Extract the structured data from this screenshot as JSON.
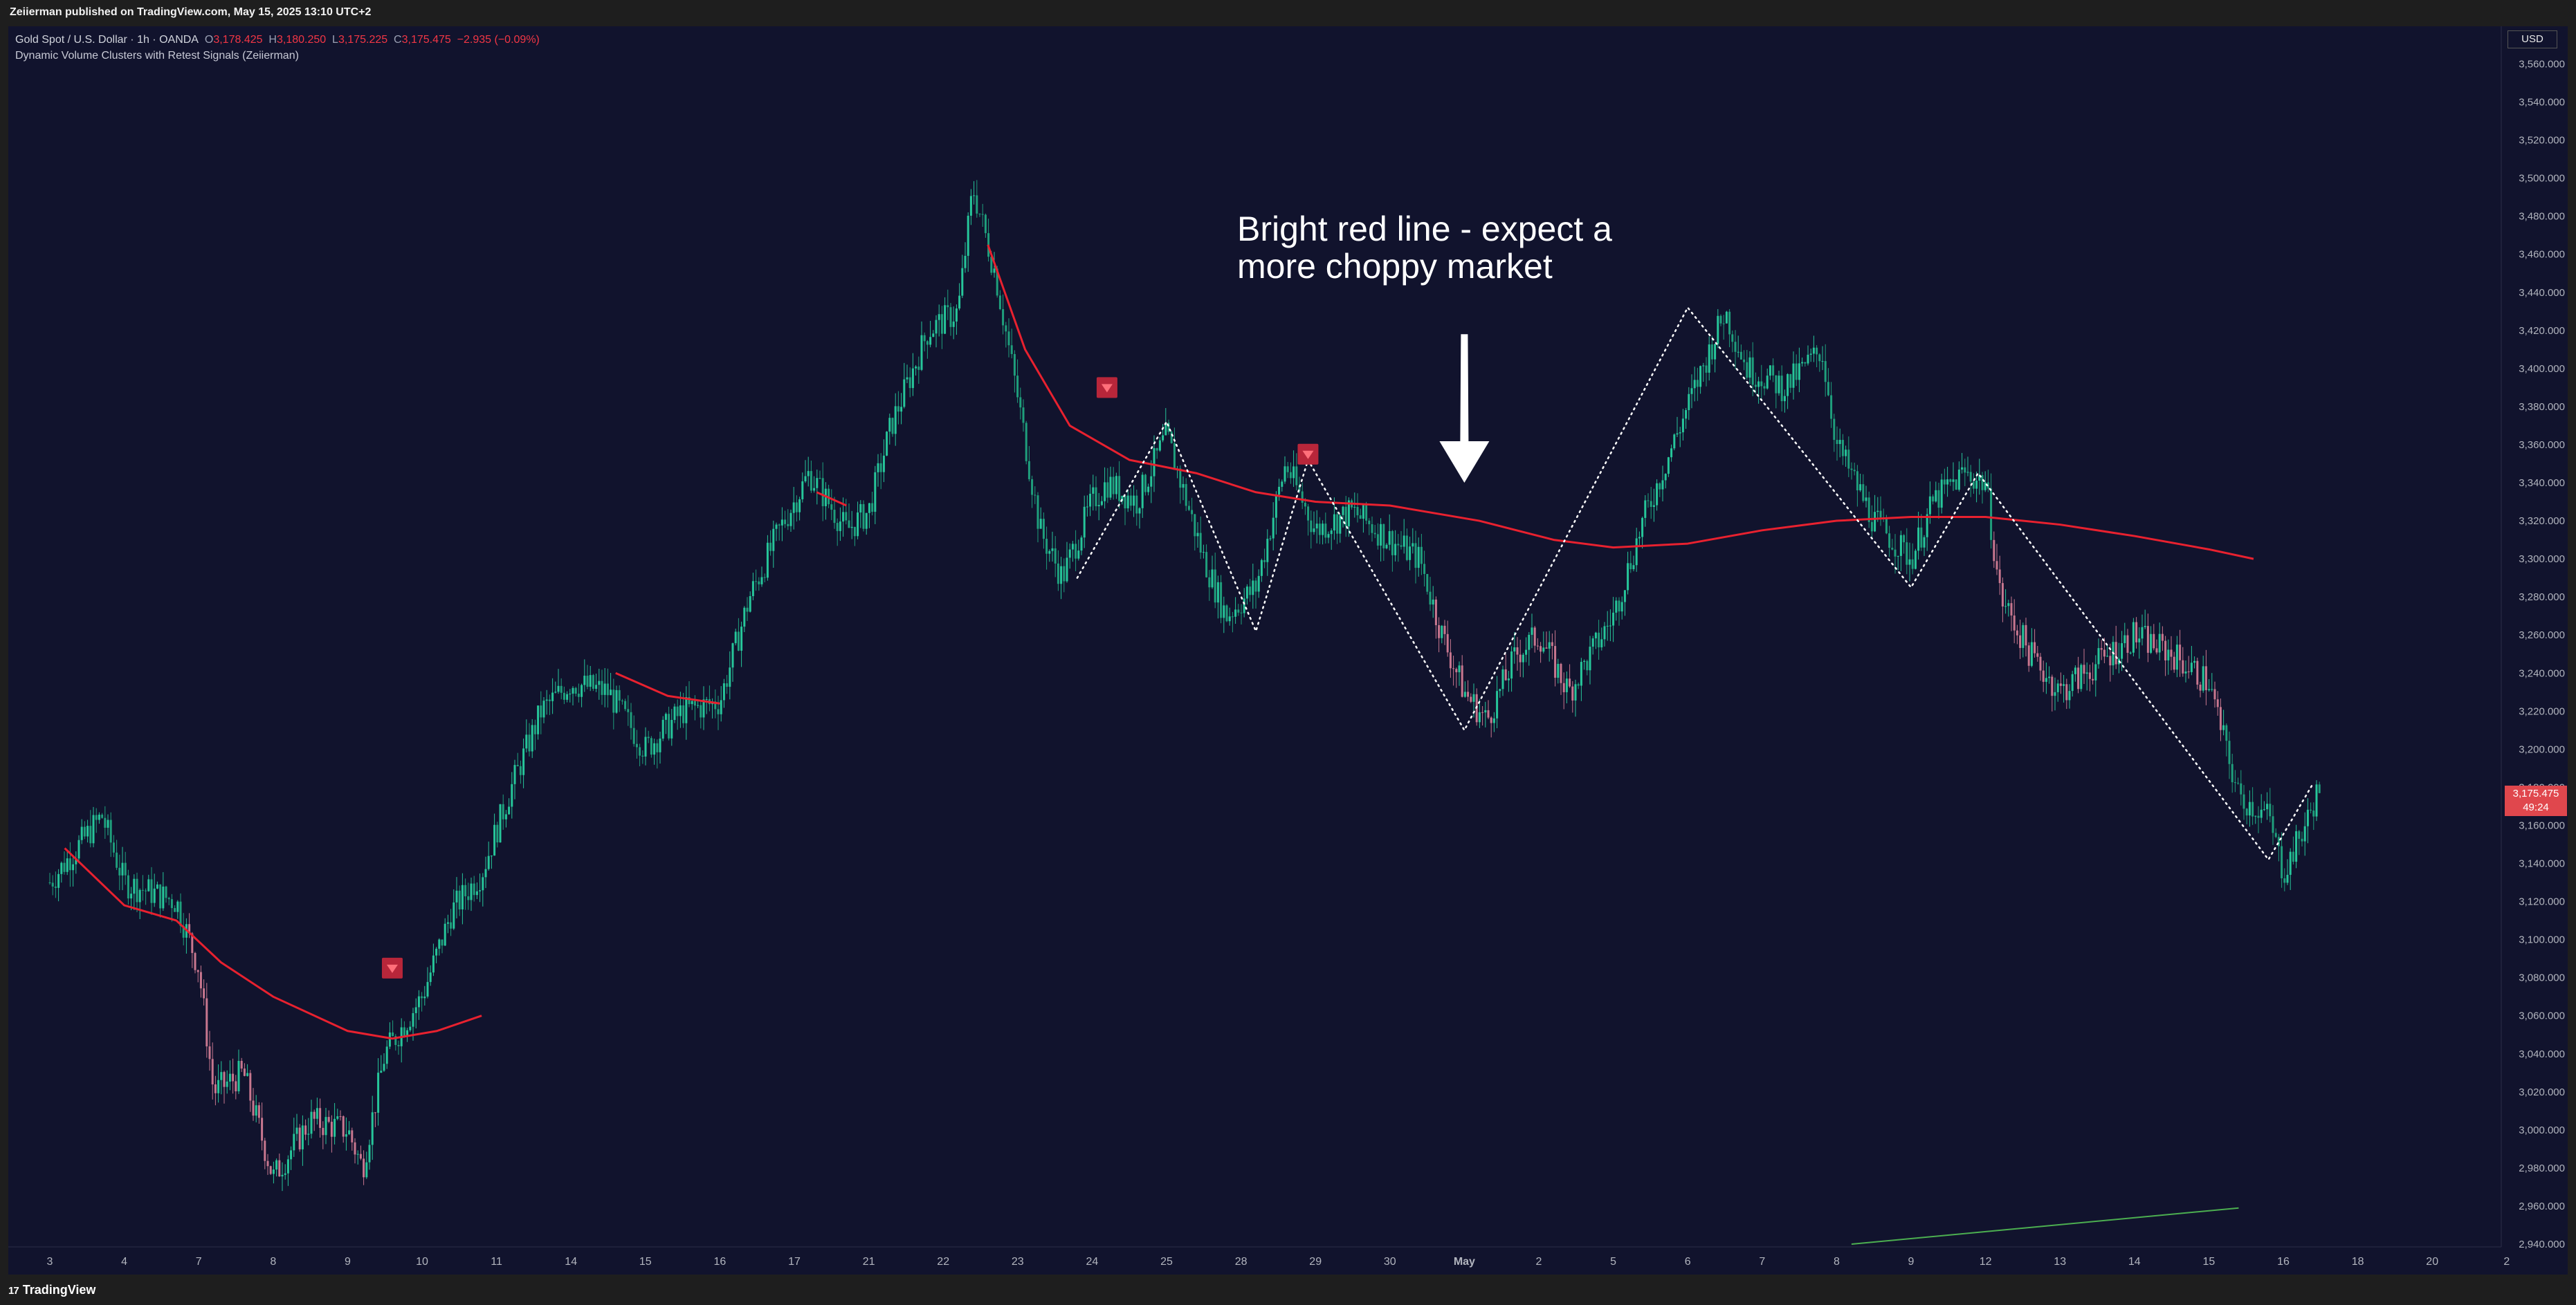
{
  "header": {
    "published_text": "Zeiierman published on TradingView.com, May 15, 2025 13:10 UTC+2"
  },
  "legend": {
    "symbol": "Gold Spot / U.S. Dollar · 1h · OANDA",
    "open_label": "O",
    "open": "3,178.425",
    "high_label": "H",
    "high": "3,180.250",
    "low_label": "L",
    "low": "3,175.225",
    "close_label": "C",
    "close": "3,175.475",
    "change": "−2.935 (−0.09%)",
    "indicator": "Dynamic Volume Clusters with Retest Signals (Zeiierman)"
  },
  "price_scale": {
    "currency": "USD",
    "last_price": "3,175.475",
    "countdown": "49:24"
  },
  "footer": {
    "brand": "TradingView",
    "logo_glyph": "17"
  },
  "colors": {
    "background": "#11132d",
    "bull_candle": "#26c69a",
    "bear_candle": "#c8778f",
    "cluster_line": "#e8212f",
    "zigzag": "#ffffff",
    "signal_marker": "#b8263a",
    "trend_line": "#4caf50",
    "last_price_tag": "#e0474d"
  },
  "chart_data": {
    "type": "candlestick",
    "instrument": "Gold Spot / U.S. Dollar",
    "timeframe": "1h",
    "ylim": [
      2940,
      3565
    ],
    "y_ticks": [
      2940,
      2960,
      2980,
      3000,
      3020,
      3040,
      3060,
      3080,
      3100,
      3120,
      3140,
      3160,
      3180,
      3200,
      3220,
      3240,
      3260,
      3280,
      3300,
      3320,
      3340,
      3360,
      3380,
      3400,
      3420,
      3440,
      3460,
      3480,
      3500,
      3520,
      3540,
      3560
    ],
    "y_tick_labels": [
      "2,940.000",
      "2,960.000",
      "2,980.000",
      "3,000.000",
      "3,020.000",
      "3,040.000",
      "3,060.000",
      "3,080.000",
      "3,100.000",
      "3,120.000",
      "3,140.000",
      "3,160.000",
      "3,180.000",
      "3,200.000",
      "3,220.000",
      "3,240.000",
      "3,260.000",
      "3,280.000",
      "3,300.000",
      "3,320.000",
      "3,340.000",
      "3,360.000",
      "3,380.000",
      "3,400.000",
      "3,420.000",
      "3,440.000",
      "3,460.000",
      "3,480.000",
      "3,500.000",
      "3,520.000",
      "3,540.000",
      "3,560.000"
    ],
    "x_tick_labels": [
      "3",
      "4",
      "7",
      "8",
      "9",
      "10",
      "11",
      "14",
      "15",
      "16",
      "17",
      "21",
      "22",
      "23",
      "24",
      "25",
      "28",
      "29",
      "30",
      "May",
      "2",
      "5",
      "6",
      "7",
      "8",
      "9",
      "12",
      "13",
      "14",
      "15",
      "16",
      "18",
      "20",
      "2"
    ],
    "x_ticks_index": [
      0,
      1,
      2,
      3,
      4,
      5,
      6,
      7,
      8,
      9,
      10,
      11,
      12,
      13,
      14,
      15,
      16,
      17,
      18,
      19,
      20,
      21,
      22,
      23,
      24,
      25,
      26,
      27,
      28,
      29,
      30,
      31,
      32,
      33
    ],
    "x_tick_bold": [
      "May"
    ],
    "price_path": [
      [
        0.0,
        3130
      ],
      [
        0.7,
        3165
      ],
      [
        1.0,
        3130
      ],
      [
        1.7,
        3120
      ],
      [
        2.0,
        3085
      ],
      [
        2.2,
        3020
      ],
      [
        2.6,
        3030
      ],
      [
        3.0,
        2975
      ],
      [
        3.5,
        3005
      ],
      [
        4.0,
        3000
      ],
      [
        4.2,
        2980
      ],
      [
        4.5,
        3040
      ],
      [
        5.0,
        3070
      ],
      [
        5.4,
        3115
      ],
      [
        5.8,
        3135
      ],
      [
        6.2,
        3180
      ],
      [
        6.6,
        3220
      ],
      [
        7.0,
        3235
      ],
      [
        7.5,
        3230
      ],
      [
        8.0,
        3200
      ],
      [
        8.5,
        3220
      ],
      [
        9.0,
        3225
      ],
      [
        9.4,
        3280
      ],
      [
        9.8,
        3315
      ],
      [
        10.2,
        3345
      ],
      [
        10.7,
        3315
      ],
      [
        11.0,
        3325
      ],
      [
        11.3,
        3370
      ],
      [
        11.8,
        3420
      ],
      [
        12.2,
        3430
      ],
      [
        12.4,
        3495
      ],
      [
        12.7,
        3450
      ],
      [
        13.0,
        3385
      ],
      [
        13.3,
        3315
      ],
      [
        13.6,
        3290
      ],
      [
        14.0,
        3330
      ],
      [
        14.2,
        3340
      ],
      [
        14.6,
        3330
      ],
      [
        15.0,
        3365
      ],
      [
        15.5,
        3300
      ],
      [
        15.8,
        3270
      ],
      [
        16.2,
        3285
      ],
      [
        16.6,
        3350
      ],
      [
        17.0,
        3315
      ],
      [
        17.5,
        3325
      ],
      [
        18.0,
        3310
      ],
      [
        18.4,
        3300
      ],
      [
        18.7,
        3260
      ],
      [
        19.0,
        3230
      ],
      [
        19.3,
        3215
      ],
      [
        19.7,
        3250
      ],
      [
        20.0,
        3260
      ],
      [
        20.4,
        3230
      ],
      [
        21.0,
        3270
      ],
      [
        21.4,
        3320
      ],
      [
        21.8,
        3360
      ],
      [
        22.0,
        3380
      ],
      [
        22.5,
        3430
      ],
      [
        22.8,
        3400
      ],
      [
        23.3,
        3390
      ],
      [
        23.8,
        3410
      ],
      [
        24.0,
        3360
      ],
      [
        24.5,
        3320
      ],
      [
        25.0,
        3300
      ],
      [
        25.3,
        3330
      ],
      [
        25.7,
        3345
      ],
      [
        26.0,
        3340
      ],
      [
        26.2,
        3280
      ],
      [
        26.6,
        3250
      ],
      [
        27.0,
        3230
      ],
      [
        27.5,
        3245
      ],
      [
        28.0,
        3260
      ],
      [
        28.5,
        3250
      ],
      [
        29.0,
        3235
      ],
      [
        29.4,
        3175
      ],
      [
        29.8,
        3165
      ],
      [
        30.0,
        3135
      ],
      [
        30.3,
        3160
      ],
      [
        30.5,
        3182
      ]
    ],
    "cluster_line_segments": [
      [
        [
          0.2,
          3148
        ],
        [
          1.0,
          3118
        ],
        [
          1.7,
          3110
        ],
        [
          2.3,
          3088
        ],
        [
          3.0,
          3070
        ],
        [
          4.0,
          3052
        ],
        [
          4.6,
          3048
        ],
        [
          5.2,
          3052
        ],
        [
          5.8,
          3060
        ]
      ],
      [
        [
          7.6,
          3240
        ],
        [
          8.3,
          3228
        ],
        [
          9.0,
          3224
        ]
      ],
      [
        [
          10.3,
          3335
        ],
        [
          10.7,
          3328
        ]
      ],
      [
        [
          12.6,
          3465
        ],
        [
          13.1,
          3410
        ],
        [
          13.7,
          3370
        ],
        [
          14.5,
          3352
        ],
        [
          15.4,
          3345
        ],
        [
          16.2,
          3335
        ],
        [
          17.0,
          3330
        ],
        [
          18.0,
          3328
        ],
        [
          19.2,
          3320
        ],
        [
          20.2,
          3310
        ],
        [
          21.0,
          3306
        ],
        [
          22.0,
          3308
        ],
        [
          23.0,
          3315
        ],
        [
          24.0,
          3320
        ],
        [
          25.0,
          3322
        ],
        [
          26.0,
          3322
        ],
        [
          27.0,
          3318
        ],
        [
          28.0,
          3312
        ],
        [
          29.0,
          3305
        ],
        [
          29.6,
          3300
        ]
      ]
    ],
    "zigzag": [
      [
        13.8,
        3290
      ],
      [
        15.0,
        3372
      ],
      [
        16.2,
        3262
      ],
      [
        16.9,
        3352
      ],
      [
        19.0,
        3210
      ],
      [
        22.0,
        3432
      ],
      [
        25.0,
        3285
      ],
      [
        25.9,
        3345
      ],
      [
        29.8,
        3142
      ],
      [
        30.4,
        3182
      ]
    ],
    "signal_markers": [
      [
        4.6,
        3085
      ],
      [
        14.2,
        3390
      ],
      [
        16.9,
        3355
      ]
    ],
    "trend_line": [
      [
        24.2,
        2940
      ],
      [
        29.4,
        2959
      ]
    ],
    "annotation_arrow": {
      "x": 19.0,
      "from": 3418,
      "to": 3340
    },
    "annotation_text": [
      "Bright red line - expect a",
      "more choppy market"
    ]
  }
}
